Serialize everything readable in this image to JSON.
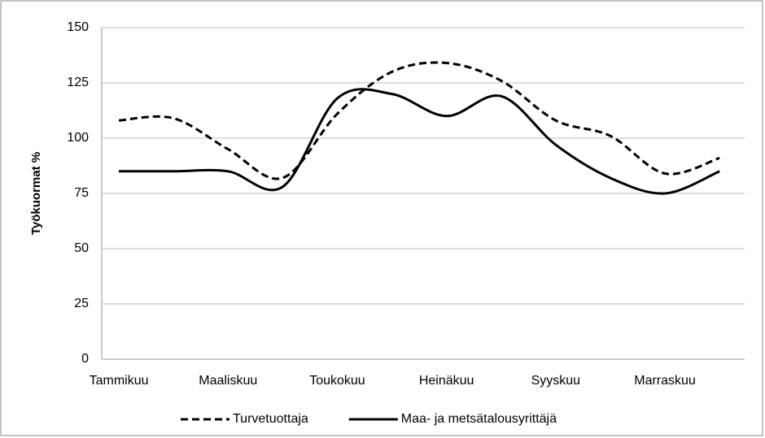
{
  "chart_data": {
    "type": "line",
    "y_label": "Työkuormat %",
    "categories": [
      "Tammikuu",
      null,
      "Maaliskuu",
      null,
      "Toukokuu",
      null,
      "Heinäkuu",
      null,
      "Syyskuu",
      null,
      "Marraskuu",
      null
    ],
    "series": [
      {
        "name": "Turvetuottaja",
        "color": "#000000",
        "dashed": true,
        "values": [
          108,
          109,
          95,
          82,
          111,
          130,
          134,
          126,
          108,
          101,
          84,
          91
        ]
      },
      {
        "name": "Maa- ja metsätalousyrittäjä",
        "color": "#000000",
        "dashed": false,
        "values": [
          85,
          85,
          85,
          78,
          118,
          120,
          110,
          119,
          97,
          82,
          75,
          85
        ]
      }
    ],
    "ylim": [
      0,
      150
    ],
    "yticks": [
      0,
      25,
      50,
      75,
      100,
      125,
      150
    ],
    "grid": true,
    "smooth": true,
    "legend": "bottom"
  }
}
